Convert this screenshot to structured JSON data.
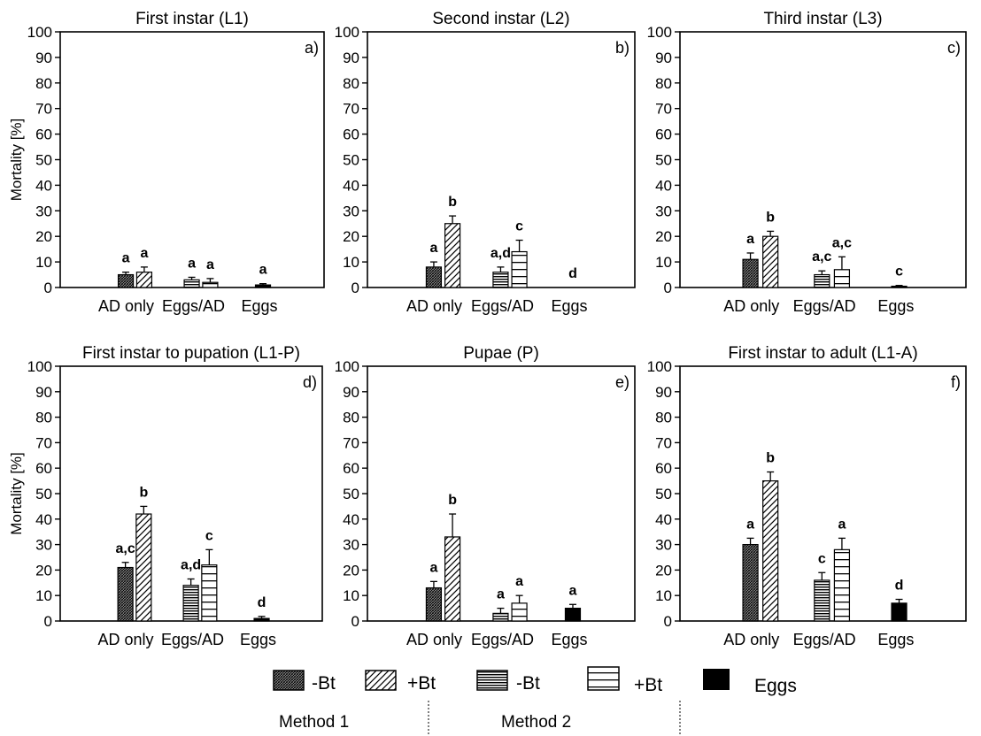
{
  "figure": {
    "y_axis_label": "Mortality [%]",
    "categories": [
      "AD only",
      "Eggs/AD",
      "Eggs"
    ],
    "legend": {
      "items": [
        {
          "pattern": "cross-dense",
          "label": "-Bt"
        },
        {
          "pattern": "diagonal",
          "label": "+Bt"
        },
        {
          "pattern": "horizontal-dense",
          "label": "-Bt"
        },
        {
          "pattern": "horizontal-wide",
          "label": "+Bt"
        },
        {
          "pattern": "solid",
          "label": "Eggs"
        }
      ],
      "methods": [
        "Method 1",
        "Method 2"
      ]
    }
  },
  "chart_data": [
    {
      "type": "bar",
      "panel_letter": "a)",
      "title": "First instar (L1)",
      "ylim": [
        0,
        100
      ],
      "yticks": [
        0,
        10,
        20,
        30,
        40,
        50,
        60,
        70,
        80,
        90,
        100
      ],
      "categories": [
        "AD only",
        "Eggs/AD",
        "Eggs"
      ],
      "bars": [
        {
          "group": 0,
          "pattern": "cross-dense",
          "value": 5,
          "err": 1,
          "letter": "a"
        },
        {
          "group": 0,
          "pattern": "diagonal",
          "value": 6,
          "err": 2,
          "letter": "a"
        },
        {
          "group": 1,
          "pattern": "horizontal-dense",
          "value": 3,
          "err": 1,
          "letter": "a"
        },
        {
          "group": 1,
          "pattern": "horizontal-wide",
          "value": 2,
          "err": 1.5,
          "letter": "a"
        },
        {
          "group": 2,
          "pattern": "solid",
          "value": 1,
          "err": 0.5,
          "letter": "a"
        }
      ]
    },
    {
      "type": "bar",
      "panel_letter": "b)",
      "title": "Second instar (L2)",
      "ylim": [
        0,
        100
      ],
      "yticks": [
        0,
        10,
        20,
        30,
        40,
        50,
        60,
        70,
        80,
        90,
        100
      ],
      "categories": [
        "AD only",
        "Eggs/AD",
        "Eggs"
      ],
      "bars": [
        {
          "group": 0,
          "pattern": "cross-dense",
          "value": 8,
          "err": 2,
          "letter": "a"
        },
        {
          "group": 0,
          "pattern": "diagonal",
          "value": 25,
          "err": 3,
          "letter": "b"
        },
        {
          "group": 1,
          "pattern": "horizontal-dense",
          "value": 6,
          "err": 2,
          "letter": "a,d"
        },
        {
          "group": 1,
          "pattern": "horizontal-wide",
          "value": 14,
          "err": 4.5,
          "letter": "c"
        },
        {
          "group": 2,
          "pattern": "solid",
          "value": 0,
          "err": 0,
          "letter": "d"
        }
      ]
    },
    {
      "type": "bar",
      "panel_letter": "c)",
      "title": "Third instar (L3)",
      "ylim": [
        0,
        100
      ],
      "yticks": [
        0,
        10,
        20,
        30,
        40,
        50,
        60,
        70,
        80,
        90,
        100
      ],
      "categories": [
        "AD only",
        "Eggs/AD",
        "Eggs"
      ],
      "bars": [
        {
          "group": 0,
          "pattern": "cross-dense",
          "value": 11,
          "err": 2.5,
          "letter": "a"
        },
        {
          "group": 0,
          "pattern": "diagonal",
          "value": 20,
          "err": 2,
          "letter": "b"
        },
        {
          "group": 1,
          "pattern": "horizontal-dense",
          "value": 5,
          "err": 1.5,
          "letter": "a,c"
        },
        {
          "group": 1,
          "pattern": "horizontal-wide",
          "value": 7,
          "err": 5,
          "letter": "a,c"
        },
        {
          "group": 2,
          "pattern": "solid",
          "value": 0.5,
          "err": 0.3,
          "letter": "c"
        }
      ]
    },
    {
      "type": "bar",
      "panel_letter": "d)",
      "title": "First instar to pupation (L1-P)",
      "ylim": [
        0,
        100
      ],
      "yticks": [
        0,
        10,
        20,
        30,
        40,
        50,
        60,
        70,
        80,
        90,
        100
      ],
      "categories": [
        "AD only",
        "Eggs/AD",
        "Eggs"
      ],
      "bars": [
        {
          "group": 0,
          "pattern": "cross-dense",
          "value": 21,
          "err": 2,
          "letter": "a,c"
        },
        {
          "group": 0,
          "pattern": "diagonal",
          "value": 42,
          "err": 3,
          "letter": "b"
        },
        {
          "group": 1,
          "pattern": "horizontal-dense",
          "value": 14,
          "err": 2.5,
          "letter": "a,d"
        },
        {
          "group": 1,
          "pattern": "horizontal-wide",
          "value": 22,
          "err": 6,
          "letter": "c"
        },
        {
          "group": 2,
          "pattern": "solid",
          "value": 1,
          "err": 0.8,
          "letter": "d"
        }
      ]
    },
    {
      "type": "bar",
      "panel_letter": "e)",
      "title": "Pupae (P)",
      "ylim": [
        0,
        100
      ],
      "yticks": [
        0,
        10,
        20,
        30,
        40,
        50,
        60,
        70,
        80,
        90,
        100
      ],
      "categories": [
        "AD only",
        "Eggs/AD",
        "Eggs"
      ],
      "bars": [
        {
          "group": 0,
          "pattern": "cross-dense",
          "value": 13,
          "err": 2.5,
          "letter": "a"
        },
        {
          "group": 0,
          "pattern": "diagonal",
          "value": 33,
          "err": 9,
          "letter": "b"
        },
        {
          "group": 1,
          "pattern": "horizontal-dense",
          "value": 3,
          "err": 2,
          "letter": "a"
        },
        {
          "group": 1,
          "pattern": "horizontal-wide",
          "value": 7,
          "err": 3,
          "letter": "a"
        },
        {
          "group": 2,
          "pattern": "solid",
          "value": 5,
          "err": 1.5,
          "letter": "a"
        }
      ]
    },
    {
      "type": "bar",
      "panel_letter": "f)",
      "title": "First instar to adult (L1-A)",
      "ylim": [
        0,
        100
      ],
      "yticks": [
        0,
        10,
        20,
        30,
        40,
        50,
        60,
        70,
        80,
        90,
        100
      ],
      "categories": [
        "AD only",
        "Eggs/AD",
        "Eggs"
      ],
      "bars": [
        {
          "group": 0,
          "pattern": "cross-dense",
          "value": 30,
          "err": 2.5,
          "letter": "a"
        },
        {
          "group": 0,
          "pattern": "diagonal",
          "value": 55,
          "err": 3.5,
          "letter": "b"
        },
        {
          "group": 1,
          "pattern": "horizontal-dense",
          "value": 16,
          "err": 3,
          "letter": "c"
        },
        {
          "group": 1,
          "pattern": "horizontal-wide",
          "value": 28,
          "err": 4.5,
          "letter": "a"
        },
        {
          "group": 2,
          "pattern": "solid",
          "value": 7,
          "err": 1.5,
          "letter": "d"
        }
      ]
    }
  ]
}
